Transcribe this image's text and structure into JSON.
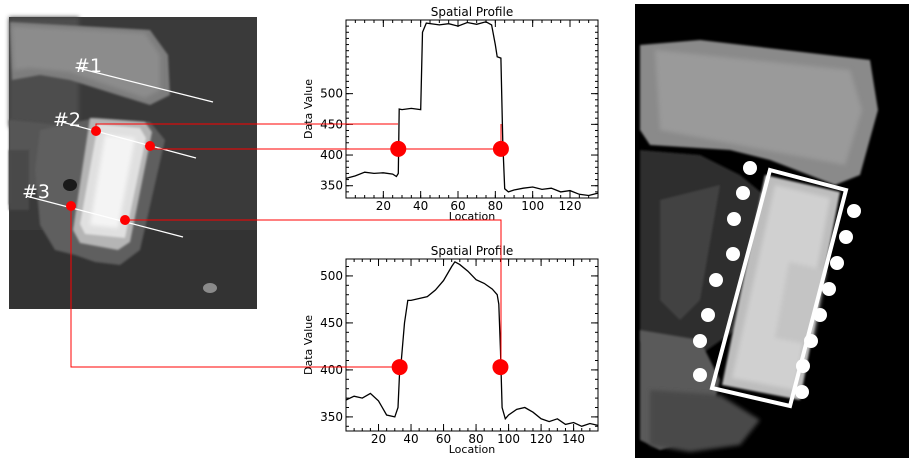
{
  "left_image": {
    "labels": [
      "#1",
      "#2",
      "#3"
    ]
  },
  "plots": [
    {
      "title": "Spatial Profile",
      "xlabel": "Location",
      "ylabel": "Data Value",
      "xlim": [
        0,
        135
      ],
      "ylim": [
        330,
        620
      ],
      "xticks": [
        20,
        40,
        60,
        80,
        100,
        120
      ],
      "yticks": [
        350,
        400,
        450,
        500
      ],
      "markers": [
        {
          "x": 28,
          "y": 410
        },
        {
          "x": 83,
          "y": 410
        }
      ]
    },
    {
      "title": "Spatial Profile",
      "xlabel": "Location",
      "ylabel": "Data Value",
      "xlim": [
        0,
        155
      ],
      "ylim": [
        335,
        518
      ],
      "xticks": [
        20,
        40,
        60,
        80,
        100,
        120,
        140
      ],
      "yticks": [
        350,
        400,
        450,
        500
      ],
      "markers": [
        {
          "x": 33,
          "y": 403
        },
        {
          "x": 95,
          "y": 403
        }
      ]
    }
  ],
  "chart_data": [
    {
      "type": "line",
      "title": "Spatial Profile",
      "xlabel": "Location",
      "ylabel": "Data Value",
      "xlim": [
        0,
        135
      ],
      "ylim": [
        330,
        620
      ],
      "series": [
        {
          "x": [
            0,
            5,
            10,
            15,
            20,
            25,
            27,
            28,
            28.5,
            30,
            35,
            40,
            41,
            43,
            50,
            55,
            60,
            65,
            70,
            75,
            78,
            80,
            81,
            83,
            84,
            85,
            87,
            90,
            95,
            100,
            105,
            110,
            115,
            120,
            125,
            130,
            135
          ],
          "y": [
            362,
            366,
            372,
            370,
            371,
            369,
            365,
            370,
            475,
            474,
            476,
            474,
            600,
            615,
            612,
            614,
            610,
            616,
            613,
            617,
            612,
            580,
            560,
            558,
            420,
            345,
            340,
            343,
            346,
            348,
            344,
            346,
            340,
            342,
            336,
            334,
            338
          ]
        }
      ]
    },
    {
      "type": "line",
      "title": "Spatial Profile",
      "xlabel": "Location",
      "ylabel": "Data Value",
      "xlim": [
        0,
        155
      ],
      "ylim": [
        335,
        518
      ],
      "series": [
        {
          "x": [
            0,
            5,
            10,
            15,
            20,
            25,
            30,
            32,
            33,
            34,
            36,
            38,
            40,
            45,
            50,
            55,
            60,
            65,
            67,
            70,
            75,
            80,
            85,
            90,
            93,
            94,
            95,
            96,
            98,
            100,
            105,
            110,
            115,
            120,
            125,
            130,
            135,
            140,
            145,
            150,
            155
          ],
          "y": [
            368,
            372,
            370,
            375,
            367,
            352,
            350,
            360,
            400,
            410,
            450,
            474,
            474,
            476,
            478,
            485,
            495,
            510,
            515,
            512,
            505,
            496,
            492,
            486,
            480,
            470,
            420,
            360,
            348,
            352,
            358,
            360,
            355,
            348,
            345,
            348,
            342,
            344,
            340,
            343,
            341
          ]
        }
      ]
    }
  ]
}
